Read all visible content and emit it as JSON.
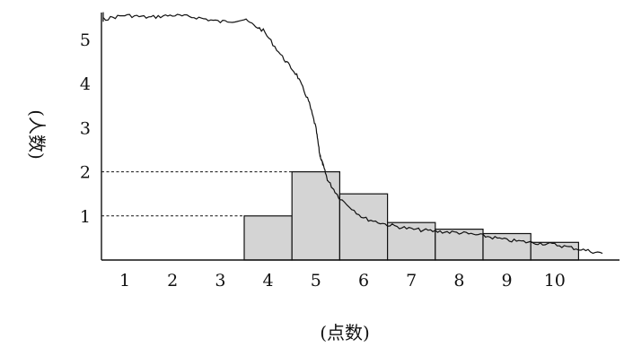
{
  "chart_data": {
    "type": "bar",
    "categories": [
      "1",
      "2",
      "3",
      "4",
      "5",
      "6",
      "7",
      "8",
      "9",
      "10"
    ],
    "values": [
      0,
      0,
      0,
      1,
      2,
      1.5,
      0.85,
      0.7,
      0.6,
      0.4
    ],
    "xlabel": "(点数)",
    "ylabel": "(人数)",
    "yticks": [
      "1",
      "2",
      "3",
      "4",
      "5"
    ],
    "ylim": [
      0,
      5.7
    ],
    "dashed_guides": [
      1,
      2
    ],
    "grid": false,
    "legend": "none",
    "overlay_curve": {
      "description_values_x": [
        0.1,
        0.25,
        0.5,
        1,
        1.5,
        2,
        2.5,
        3,
        3.5,
        3.9,
        4.3,
        4.6,
        4.85,
        5.0,
        5.08,
        5.15,
        5.25,
        5.5,
        6,
        6.5,
        7,
        7.5,
        8,
        8.5,
        9,
        9.5,
        10,
        10.5,
        11
      ],
      "description_values_y": [
        5.4,
        5.6,
        5.45,
        5.55,
        5.5,
        5.55,
        5.5,
        5.4,
        5.45,
        5.2,
        4.6,
        4.2,
        3.6,
        3.0,
        2.4,
        2.15,
        1.8,
        1.4,
        0.95,
        0.8,
        0.7,
        0.65,
        0.62,
        0.55,
        0.45,
        0.4,
        0.35,
        0.25,
        0.15
      ]
    },
    "bar_color": "#d4d4d4",
    "line_color": "#111111"
  }
}
